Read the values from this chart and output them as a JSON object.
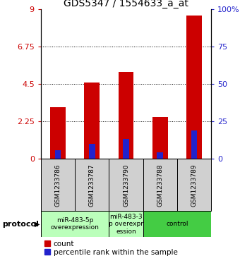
{
  "title": "GDS5347 / 1554633_a_at",
  "samples": [
    "GSM1233786",
    "GSM1233787",
    "GSM1233790",
    "GSM1233788",
    "GSM1233789"
  ],
  "red_values": [
    3.1,
    4.6,
    5.2,
    2.5,
    8.6
  ],
  "blue_values": [
    0.5,
    0.9,
    1.2,
    0.4,
    1.7
  ],
  "ylim_left": [
    0,
    9
  ],
  "ylim_right": [
    0,
    100
  ],
  "yticks_left": [
    0,
    2.25,
    4.5,
    6.75,
    9
  ],
  "yticks_right": [
    0,
    25,
    50,
    75,
    100
  ],
  "ytick_labels_right": [
    "0",
    "25",
    "50",
    "75",
    "100%"
  ],
  "grid_values": [
    2.25,
    4.5,
    6.75
  ],
  "bar_width": 0.45,
  "blue_bar_width": 0.18,
  "red_color": "#cc0000",
  "blue_color": "#2222cc",
  "protocol_labels": [
    "miR-483-5p\noverexpression",
    "miR-483-3\np overexpr\nession",
    "control"
  ],
  "protocol_groups": [
    [
      0,
      1
    ],
    [
      2
    ],
    [
      3,
      4
    ]
  ],
  "protocol_colors": [
    "#bbffbb",
    "#bbffbb",
    "#44cc44"
  ],
  "legend_count_label": "count",
  "legend_pct_label": "percentile rank within the sample",
  "protocol_text": "protocol",
  "bg_color": "#ffffff",
  "title_fontsize": 10,
  "axis_fontsize": 8,
  "sample_fontsize": 6.5,
  "proto_fontsize": 6.5,
  "legend_fontsize": 7.5
}
